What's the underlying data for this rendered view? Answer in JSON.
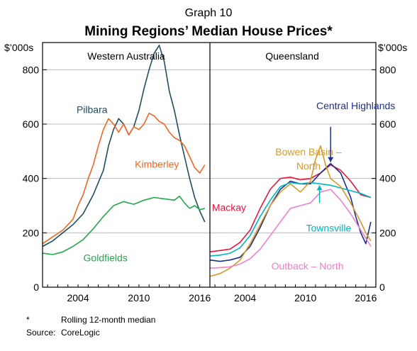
{
  "chart_data": {
    "type": "line",
    "supertitle": "Graph 10",
    "title": "Mining Regions’ Median House Prices*",
    "y_unit_left": "$’000s",
    "y_unit_right": "$’000s",
    "ylim": [
      0,
      900
    ],
    "yticks": [
      0,
      200,
      400,
      600,
      800
    ],
    "xlim": [
      2000.5,
      2017.0
    ],
    "xticks": [
      2004,
      2010,
      2016
    ],
    "footnote_marker": "*",
    "footnote_text": "Rolling 12-month median",
    "source_label": "Source:",
    "source_text": "CoreLogic",
    "panels": [
      {
        "title": "Western Australia",
        "series": [
          {
            "name": "Pilbara",
            "color": "#1f4e5f",
            "x": [
              2000.5,
              2001.5,
              2002.5,
              2003.5,
              2004.5,
              2005.5,
              2006.5,
              2007.0,
              2007.5,
              2008.0,
              2008.5,
              2009.0,
              2009.5,
              2010.0,
              2010.5,
              2011.0,
              2011.5,
              2012.0,
              2012.5,
              2013.0,
              2013.5,
              2014.0,
              2014.5,
              2015.0,
              2015.5,
              2016.0,
              2016.5
            ],
            "values": [
              150,
              170,
              200,
              230,
              270,
              340,
              430,
              520,
              580,
              620,
              600,
              560,
              590,
              650,
              730,
              800,
              860,
              890,
              830,
              720,
              650,
              560,
              480,
              400,
              330,
              280,
              240
            ]
          },
          {
            "name": "Kimberley",
            "color": "#f26522",
            "x": [
              2000.5,
              2001.5,
              2002.5,
              2003.5,
              2004.0,
              2004.5,
              2005.0,
              2005.5,
              2006.0,
              2006.5,
              2007.0,
              2007.5,
              2008.0,
              2008.5,
              2009.0,
              2009.5,
              2010.0,
              2010.5,
              2011.0,
              2011.5,
              2012.0,
              2012.5,
              2013.0,
              2013.5,
              2014.0,
              2014.5,
              2015.0,
              2015.5,
              2016.0,
              2016.5
            ],
            "values": [
              160,
              185,
              210,
              250,
              300,
              340,
              400,
              450,
              520,
              580,
              620,
              600,
              570,
              600,
              560,
              590,
              580,
              600,
              640,
              630,
              610,
              600,
              570,
              550,
              540,
              520,
              480,
              440,
              420,
              450
            ]
          },
          {
            "name": "Goldfields",
            "color": "#22a84a",
            "x": [
              2000.5,
              2001.5,
              2002.5,
              2003.5,
              2004.5,
              2005.5,
              2006.5,
              2007.5,
              2008.5,
              2009.5,
              2010.5,
              2011.5,
              2012.5,
              2013.5,
              2014.0,
              2014.5,
              2015.0,
              2015.5,
              2016.0,
              2016.5
            ],
            "values": [
              125,
              120,
              130,
              150,
              175,
              215,
              260,
              300,
              315,
              305,
              320,
              330,
              325,
              320,
              335,
              310,
              290,
              300,
              285,
              290
            ]
          }
        ]
      },
      {
        "title": "Queensland",
        "series": [
          {
            "name": "Mackay",
            "color": "#e8173e",
            "x": [
              2000.5,
              2001.5,
              2002.5,
              2003.5,
              2004.5,
              2005.5,
              2006.5,
              2007.5,
              2008.5,
              2009.5,
              2010.5,
              2011.5,
              2012.5,
              2013.5,
              2014.5,
              2015.5,
              2016.5
            ],
            "values": [
              130,
              135,
              140,
              165,
              210,
              290,
              360,
              400,
              405,
              395,
              400,
              420,
              450,
              430,
              390,
              340,
              330
            ]
          },
          {
            "name": "Central Highlands",
            "color": "#1a2f8f",
            "x": [
              2000.5,
              2001.5,
              2002.5,
              2003.5,
              2004.5,
              2005.5,
              2006.5,
              2007.5,
              2008.5,
              2009.5,
              2010.5,
              2011.5,
              2012.5,
              2013.5,
              2014.5,
              2015.0,
              2015.5,
              2016.0,
              2016.5
            ],
            "values": [
              100,
              95,
              100,
              110,
              150,
              220,
              300,
              360,
              390,
              380,
              380,
              420,
              455,
              420,
              330,
              260,
              200,
              160,
              240
            ]
          },
          {
            "name": "Townsville",
            "color": "#00b7c3",
            "x": [
              2000.5,
              2001.5,
              2002.5,
              2003.5,
              2004.5,
              2005.5,
              2006.5,
              2007.5,
              2008.5,
              2009.5,
              2010.5,
              2011.5,
              2012.5,
              2013.5,
              2014.5,
              2015.5,
              2016.5
            ],
            "values": [
              115,
              118,
              125,
              145,
              190,
              260,
              320,
              370,
              385,
              380,
              385,
              380,
              375,
              365,
              355,
              345,
              330
            ]
          },
          {
            "name": "Bowen Basin –\nNorth",
            "color": "#d89a2a",
            "x": [
              2000.5,
              2001.5,
              2002.5,
              2003.5,
              2004.5,
              2005.5,
              2006.5,
              2007.5,
              2008.5,
              2009.5,
              2010.5,
              2011.0,
              2011.5,
              2012.0,
              2012.5,
              2013.5,
              2014.5,
              2015.5,
              2016.0,
              2016.5
            ],
            "values": [
              40,
              50,
              70,
              100,
              160,
              230,
              300,
              350,
              380,
              350,
              390,
              470,
              520,
              450,
              400,
              370,
              310,
              240,
              200,
              170
            ]
          },
          {
            "name": "Outback – North",
            "color": "#f07fd0",
            "x": [
              2000.5,
              2001.5,
              2002.5,
              2003.5,
              2004.5,
              2005.5,
              2006.5,
              2007.5,
              2008.5,
              2009.5,
              2010.5,
              2011.5,
              2012.5,
              2013.5,
              2014.5,
              2015.5,
              2016.0,
              2016.5
            ],
            "values": [
              70,
              72,
              75,
              85,
              105,
              140,
              190,
              240,
              290,
              300,
              310,
              350,
              360,
              320,
              270,
              210,
              180,
              150
            ]
          }
        ]
      }
    ]
  }
}
